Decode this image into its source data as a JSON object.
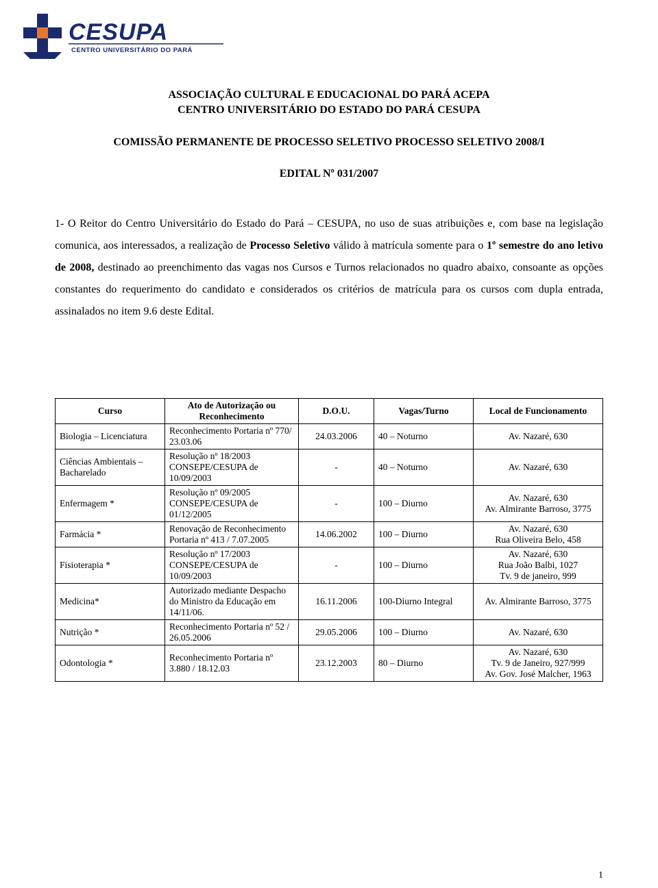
{
  "logo": {
    "main_text": "CESUPA",
    "sub_text": "CENTRO UNIVERSITÁRIO DO PARÁ",
    "colors": {
      "dark": "#1a2a6c",
      "accent": "#e8772e"
    }
  },
  "header": {
    "line1": "ASSOCIAÇÃO CULTURAL E EDUCACIONAL DO PARÁ ACEPA",
    "line2": "CENTRO UNIVERSITÁRIO DO ESTADO DO PARÁ CESUPA"
  },
  "subheader": {
    "line1": "COMISSÃO PERMANENTE DE PROCESSO SELETIVO",
    "line2": "PROCESSO SELETIVO 2008/I"
  },
  "edital": "EDITAL Nº 031/2007",
  "body": {
    "prefix": "1- O Reitor do Centro Universitário do Estado do Pará – CESUPA, no uso de suas atribuições e, com base na legislação comunica, aos interessados, a realização de ",
    "bold1": "Processo Seletivo",
    "mid1": " válido à matrícula somente para o ",
    "bold2": "1º semestre do ano letivo de 2008,",
    "suffix": " destinado ao preenchimento das vagas nos Cursos e Turnos relacionados no quadro abaixo, consoante as opções constantes do requerimento do candidato e considerados os critérios de matrícula para os cursos com dupla entrada, assinalados no item 9.6 deste Edital."
  },
  "table": {
    "headers": {
      "curso": "Curso",
      "ato": "Ato de Autorização ou Reconhecimento",
      "dou": "D.O.U.",
      "vagas": "Vagas/Turno",
      "local": "Local de Funcionamento"
    },
    "rows": [
      {
        "curso": "Biologia – Licenciatura",
        "ato": "Reconhecimento Portaria nº 770/ 23.03.06",
        "dou": "24.03.2006",
        "vagas": "40 – Noturno",
        "local": "Av. Nazaré, 630"
      },
      {
        "curso": "Ciências Ambientais – Bacharelado",
        "ato": "Resolução nº 18/2003 CONSEPE/CESUPA de 10/09/2003",
        "dou": "-",
        "vagas": "40 – Noturno",
        "local": "Av. Nazaré, 630"
      },
      {
        "curso": "Enfermagem *",
        "ato": "Resolução nº 09/2005 CONSEPE/CESUPA de 01/12/2005",
        "dou": "-",
        "vagas": "100 – Diurno",
        "local": "Av. Nazaré, 630\nAv. Almirante Barroso, 3775"
      },
      {
        "curso": "Farmácia *",
        "ato": "Renovação de Reconhecimento Portaria nº 413 / 7.07.2005",
        "dou": "14.06.2002",
        "vagas": "100 – Diurno",
        "local": "Av. Nazaré, 630\nRua Oliveira Belo, 458"
      },
      {
        "curso": "Fisioterapia *",
        "ato": "Resolução nº 17/2003 CONSEPE/CESUPA de 10/09/2003",
        "dou": "-",
        "vagas": "100 – Diurno",
        "local": "Av. Nazaré, 630\nRua João Balbi, 1027\nTv. 9 de janeiro, 999"
      },
      {
        "curso": "Medicina*",
        "ato": "Autorizado mediante Despacho do Ministro da Educação em 14/11/06.",
        "dou": "16.11.2006",
        "vagas": "100-Diurno Integral",
        "local": "Av. Almirante Barroso, 3775"
      },
      {
        "curso": "Nutrição *",
        "ato": "Reconhecimento Portaria nº 52 / 26.05.2006",
        "dou": "29.05.2006",
        "vagas": "100 – Diurno",
        "local": "Av. Nazaré, 630"
      },
      {
        "curso": "Odontologia *",
        "ato": "Reconhecimento Portaria nº 3.880 / 18.12.03",
        "dou": "23.12.2003",
        "vagas": "80 – Diurno",
        "local": "Av. Nazaré, 630\nTv. 9 de Janeiro, 927/999\nAv. Gov. José Malcher, 1963"
      }
    ]
  },
  "page_number": "1"
}
